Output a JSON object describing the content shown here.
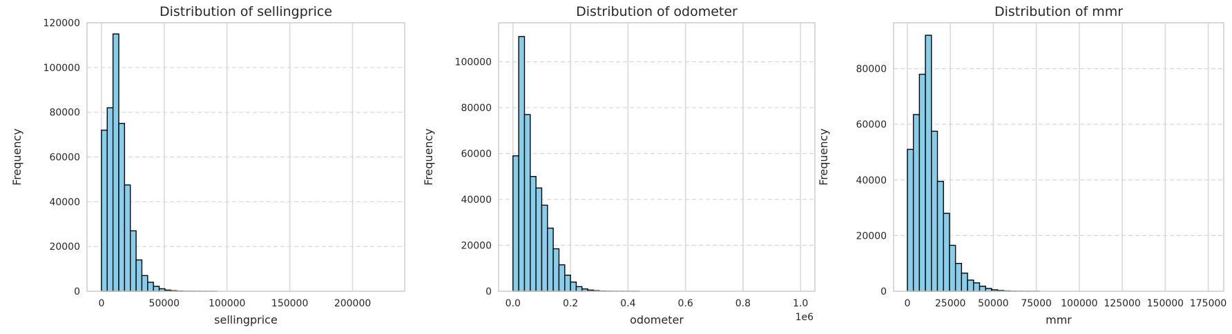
{
  "chart_data": [
    {
      "type": "bar",
      "title": "Distribution of sellingprice",
      "xlabel": "sellingprice",
      "ylabel": "Frequency",
      "xlim": [
        -11500,
        241500
      ],
      "ylim": [
        0,
        120000
      ],
      "xticks": [
        0,
        50000,
        100000,
        150000,
        200000
      ],
      "xtick_labels": [
        "0",
        "50000",
        "100000",
        "150000",
        "200000"
      ],
      "yticks": [
        0,
        20000,
        40000,
        60000,
        80000,
        100000,
        120000
      ],
      "ytick_labels": [
        "0",
        "20000",
        "40000",
        "60000",
        "80000",
        "100000",
        "120000"
      ],
      "x_offset_label": "",
      "bin_start": 0,
      "bin_width": 4600,
      "values": [
        72000,
        82000,
        115000,
        75000,
        47500,
        27000,
        14000,
        7000,
        4000,
        2200,
        1100,
        500,
        250,
        120,
        60,
        30,
        15,
        8,
        4,
        2
      ],
      "color": "#87ceeb",
      "edgecolor": "#000000",
      "grid_x": true,
      "grid_y": "dashed"
    },
    {
      "type": "bar",
      "title": "Distribution of odometer",
      "xlabel": "odometer",
      "ylabel": "Frequency",
      "xlim": [
        -0.05,
        1.05
      ],
      "ylim": [
        0,
        117000
      ],
      "xticks": [
        0,
        0.2,
        0.4,
        0.6,
        0.8,
        1.0
      ],
      "xtick_labels": [
        "0.0",
        "0.2",
        "0.4",
        "0.6",
        "0.8",
        "1.0"
      ],
      "yticks": [
        0,
        20000,
        40000,
        60000,
        80000,
        100000
      ],
      "ytick_labels": [
        "0",
        "20000",
        "40000",
        "60000",
        "80000",
        "100000"
      ],
      "x_offset_label": "1e6",
      "bin_start": 0,
      "bin_width": 0.02,
      "values": [
        59000,
        111000,
        77000,
        50000,
        45000,
        37500,
        27500,
        18500,
        11500,
        7000,
        4000,
        2000,
        1000,
        500,
        250,
        120,
        60,
        30,
        15,
        8,
        4,
        2
      ],
      "color": "#87ceeb",
      "edgecolor": "#000000",
      "grid_x": true,
      "grid_y": "dashed"
    },
    {
      "type": "bar",
      "title": "Distribution of mmr",
      "xlabel": "mmr",
      "ylabel": "Frequency",
      "xlim": [
        -8000,
        184000
      ],
      "ylim": [
        0,
        96500
      ],
      "xticks": [
        0,
        25000,
        50000,
        75000,
        100000,
        125000,
        150000,
        175000
      ],
      "xtick_labels": [
        "0",
        "25000",
        "50000",
        "75000",
        "100000",
        "125000",
        "150000",
        "175000"
      ],
      "yticks": [
        0,
        20000,
        40000,
        60000,
        80000
      ],
      "ytick_labels": [
        "0",
        "20000",
        "40000",
        "60000",
        "80000"
      ],
      "x_offset_label": "",
      "bin_start": 0,
      "bin_width": 3500,
      "values": [
        51000,
        63500,
        78000,
        92000,
        57500,
        39500,
        28000,
        16500,
        10000,
        6500,
        4000,
        3000,
        1800,
        1000,
        500,
        250,
        120,
        60,
        30,
        15,
        8,
        4
      ],
      "color": "#87ceeb",
      "edgecolor": "#000000",
      "grid_x": true,
      "grid_y": "dashed"
    }
  ]
}
